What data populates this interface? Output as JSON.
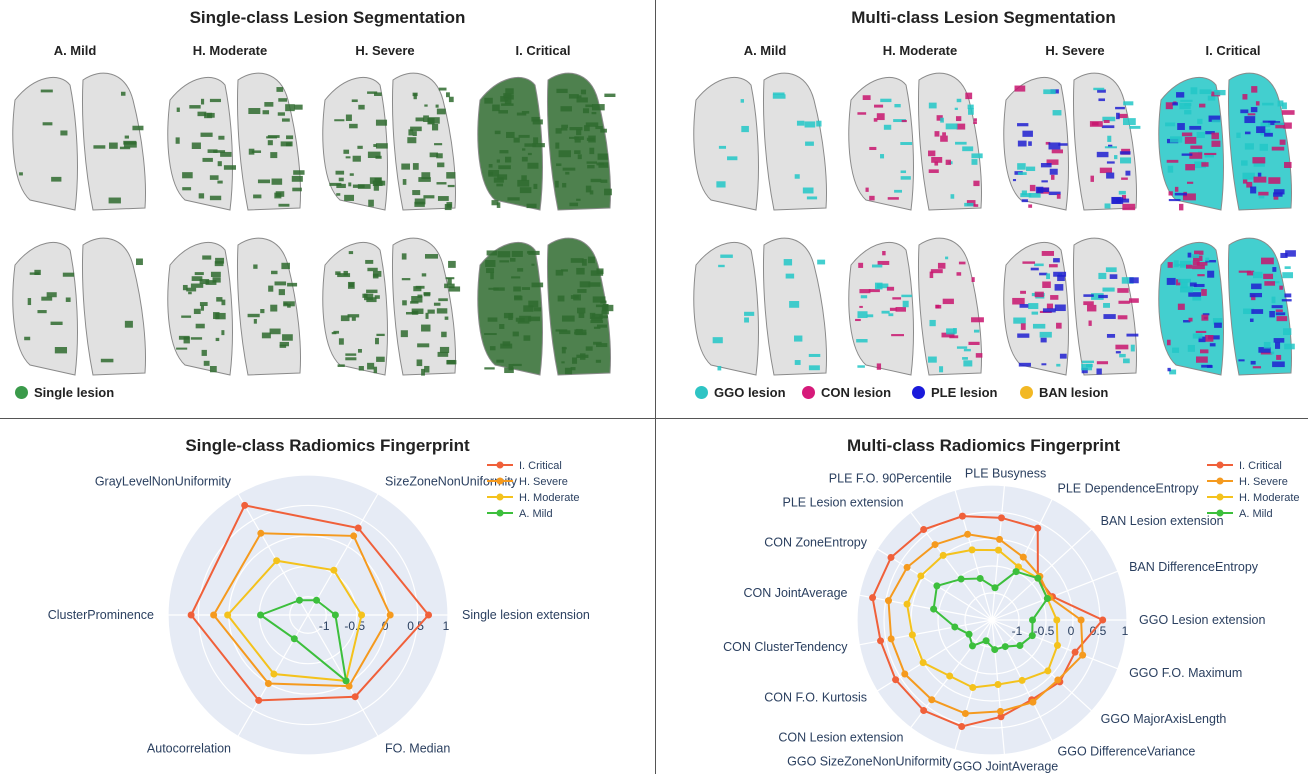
{
  "top_left": {
    "title": "Single-class Lesion Segmentation",
    "columns": [
      "A. Mild",
      "H. Moderate",
      "H. Severe",
      "I. Critical"
    ],
    "legend": [
      {
        "label": "Single lesion",
        "color": "#3a9a4a"
      }
    ],
    "lesion_colors": [
      "#2f6b2f"
    ],
    "coverage": [
      0.15,
      0.55,
      0.75,
      1.0
    ]
  },
  "top_right": {
    "title": "Multi-class Lesion Segmentation",
    "columns": [
      "A. Mild",
      "H. Moderate",
      "H. Severe",
      "I. Critical"
    ],
    "legend": [
      {
        "label": "GGO lesion",
        "color": "#2ec4c4"
      },
      {
        "label": "CON lesion",
        "color": "#d61a7a"
      },
      {
        "label": "PLE lesion",
        "color": "#1a1adb"
      },
      {
        "label": "BAN lesion",
        "color": "#f2b824"
      }
    ],
    "lesion_colors": [
      "#22c7c7",
      "#c8156e",
      "#2020d0"
    ],
    "coverage": [
      0.15,
      0.55,
      0.75,
      1.0
    ]
  },
  "chart_data": [
    {
      "type": "radar",
      "title": "Single-class Radiomics Fingerprint",
      "radial_ticks": [
        "-1",
        "-0.5",
        "0",
        "0.5",
        "1"
      ],
      "radial_range": [
        -1.3,
        1.0
      ],
      "categories": [
        "Single lesion extension",
        "FO. Median",
        "Autocorrelation",
        "ClusterProminence",
        "GrayLevelNonUniformity",
        "SizeZoneNonUniformity"
      ],
      "series": [
        {
          "name": "I. Critical",
          "color": "#f0603a",
          "values": [
            0.68,
            0.25,
            0.32,
            0.62,
            0.78,
            0.35
          ]
        },
        {
          "name": "H. Severe",
          "color": "#f59a1e",
          "values": [
            0.05,
            0.05,
            0.0,
            0.25,
            0.25,
            0.2
          ]
        },
        {
          "name": "H. Moderate",
          "color": "#f4c21c",
          "values": [
            -0.42,
            -0.05,
            -0.18,
            0.02,
            -0.27,
            -0.45
          ]
        },
        {
          "name": "A. Mild",
          "color": "#3cbf3c",
          "values": [
            -0.85,
            -0.05,
            -0.85,
            -0.52,
            -1.02,
            -1.02
          ]
        }
      ]
    },
    {
      "type": "radar",
      "title": "Multi-class Radiomics Fingerprint",
      "radial_ticks": [
        "-1",
        "-0.5",
        "0",
        "0.5",
        "1"
      ],
      "radial_range": [
        -1.5,
        1.0
      ],
      "categories": [
        "GGO Lesion extension",
        "GGO F.O. Maximum",
        "GGO MajorAxisLength",
        "GGO DifferenceVariance",
        "GGO JointAverage",
        "GGO SizeZoneNonUniformity",
        "CON Lesion extension",
        "CON F.O. Kurtosis",
        "CON ClusterTendency",
        "CON JointAverage",
        "CON ZoneEntropy",
        "PLE Lesion extension",
        "PLE F.O. 90Percentile",
        "PLE Busyness",
        "PLE DependenceEntropy",
        "BAN Lesion extension",
        "BAN DifferenceEntropy"
      ],
      "series": [
        {
          "name": "I. Critical",
          "color": "#f0603a",
          "values": [
            0.55,
            0.15,
            0.2,
            0.15,
            0.3,
            0.55,
            0.6,
            0.6,
            0.6,
            0.75,
            0.7,
            0.6,
            0.5,
            0.4,
            0.4,
            -0.35,
            -0.3
          ]
        },
        {
          "name": "H. Severe",
          "color": "#f59a1e",
          "values": [
            0.15,
            0.3,
            0.15,
            0.2,
            0.2,
            0.3,
            0.35,
            0.4,
            0.4,
            0.45,
            0.35,
            0.25,
            0.15,
            0.0,
            -0.2,
            -0.3,
            -0.35
          ]
        },
        {
          "name": "H. Moderate",
          "color": "#f4c21c",
          "values": [
            -0.3,
            -0.2,
            -0.1,
            -0.25,
            -0.3,
            -0.2,
            -0.2,
            0.0,
            0.0,
            0.1,
            0.05,
            0.0,
            -0.15,
            -0.2,
            -0.4,
            -0.35,
            -0.4
          ]
        },
        {
          "name": "A. Mild",
          "color": "#3cbf3c",
          "values": [
            -0.75,
            -0.7,
            -0.8,
            -0.95,
            -0.95,
            -1.1,
            -0.9,
            -1.0,
            -0.8,
            -0.4,
            -0.3,
            -0.55,
            -0.7,
            -0.9,
            -0.5,
            -0.35,
            -0.4
          ]
        }
      ]
    }
  ]
}
